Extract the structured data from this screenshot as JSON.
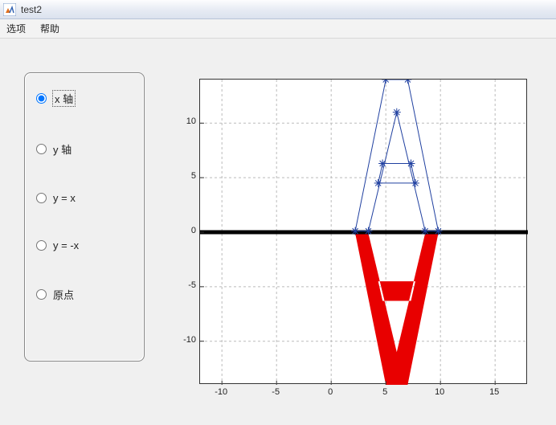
{
  "window": {
    "title": "test2",
    "icon_name": "matlab-icon"
  },
  "menubar": {
    "items": [
      "选项",
      "帮助"
    ]
  },
  "panel": {
    "options": [
      {
        "label": "x 轴",
        "selected": true
      },
      {
        "label": "y 轴",
        "selected": false
      },
      {
        "label": "y = x",
        "selected": false
      },
      {
        "label": "y = -x",
        "selected": false
      },
      {
        "label": "原点",
        "selected": false
      }
    ]
  },
  "plot": {
    "type": "line",
    "background_color": "#ffffff",
    "grid_color": "#bbbbbb",
    "grid_dash": "3,3",
    "axis_color": "#333333",
    "xlim": [
      -12,
      18
    ],
    "ylim": [
      -14,
      14
    ],
    "xticks": [
      -10,
      -5,
      0,
      5,
      10,
      15
    ],
    "yticks": [
      -10,
      -5,
      0,
      5,
      10
    ],
    "tick_fontsize": 11,
    "baseline": {
      "y": 0,
      "color": "#000000",
      "width": 5
    },
    "outline_A": {
      "color": "#2040a0",
      "width": 1,
      "marker": "asterisk",
      "marker_size": 5,
      "marker_color": "#2040a0",
      "segments": [
        [
          [
            2.2,
            0.1
          ],
          [
            5,
            14
          ],
          [
            7,
            14
          ],
          [
            9.8,
            0.1
          ],
          [
            8.6,
            0.1
          ],
          [
            6,
            11
          ],
          [
            3.4,
            0.1
          ],
          [
            2.2,
            0.1
          ]
        ],
        [
          [
            4.3,
            4.5
          ],
          [
            7.7,
            4.5
          ],
          [
            7.3,
            6.3
          ],
          [
            4.7,
            6.3
          ],
          [
            4.3,
            4.5
          ]
        ]
      ],
      "top_pair": [
        [
          5,
          14
        ],
        [
          7,
          14
        ]
      ]
    },
    "filled_A_reflected": {
      "fill": "#e80000",
      "outer": [
        [
          2.2,
          -0.1
        ],
        [
          5,
          -14
        ],
        [
          7,
          -14
        ],
        [
          9.8,
          -0.1
        ],
        [
          8.6,
          -0.1
        ],
        [
          6,
          -11
        ],
        [
          3.4,
          -0.1
        ]
      ],
      "hole": [
        [
          4.3,
          -4.5
        ],
        [
          7.7,
          -4.5
        ],
        [
          7.3,
          -6.3
        ],
        [
          4.7,
          -6.3
        ]
      ]
    }
  }
}
